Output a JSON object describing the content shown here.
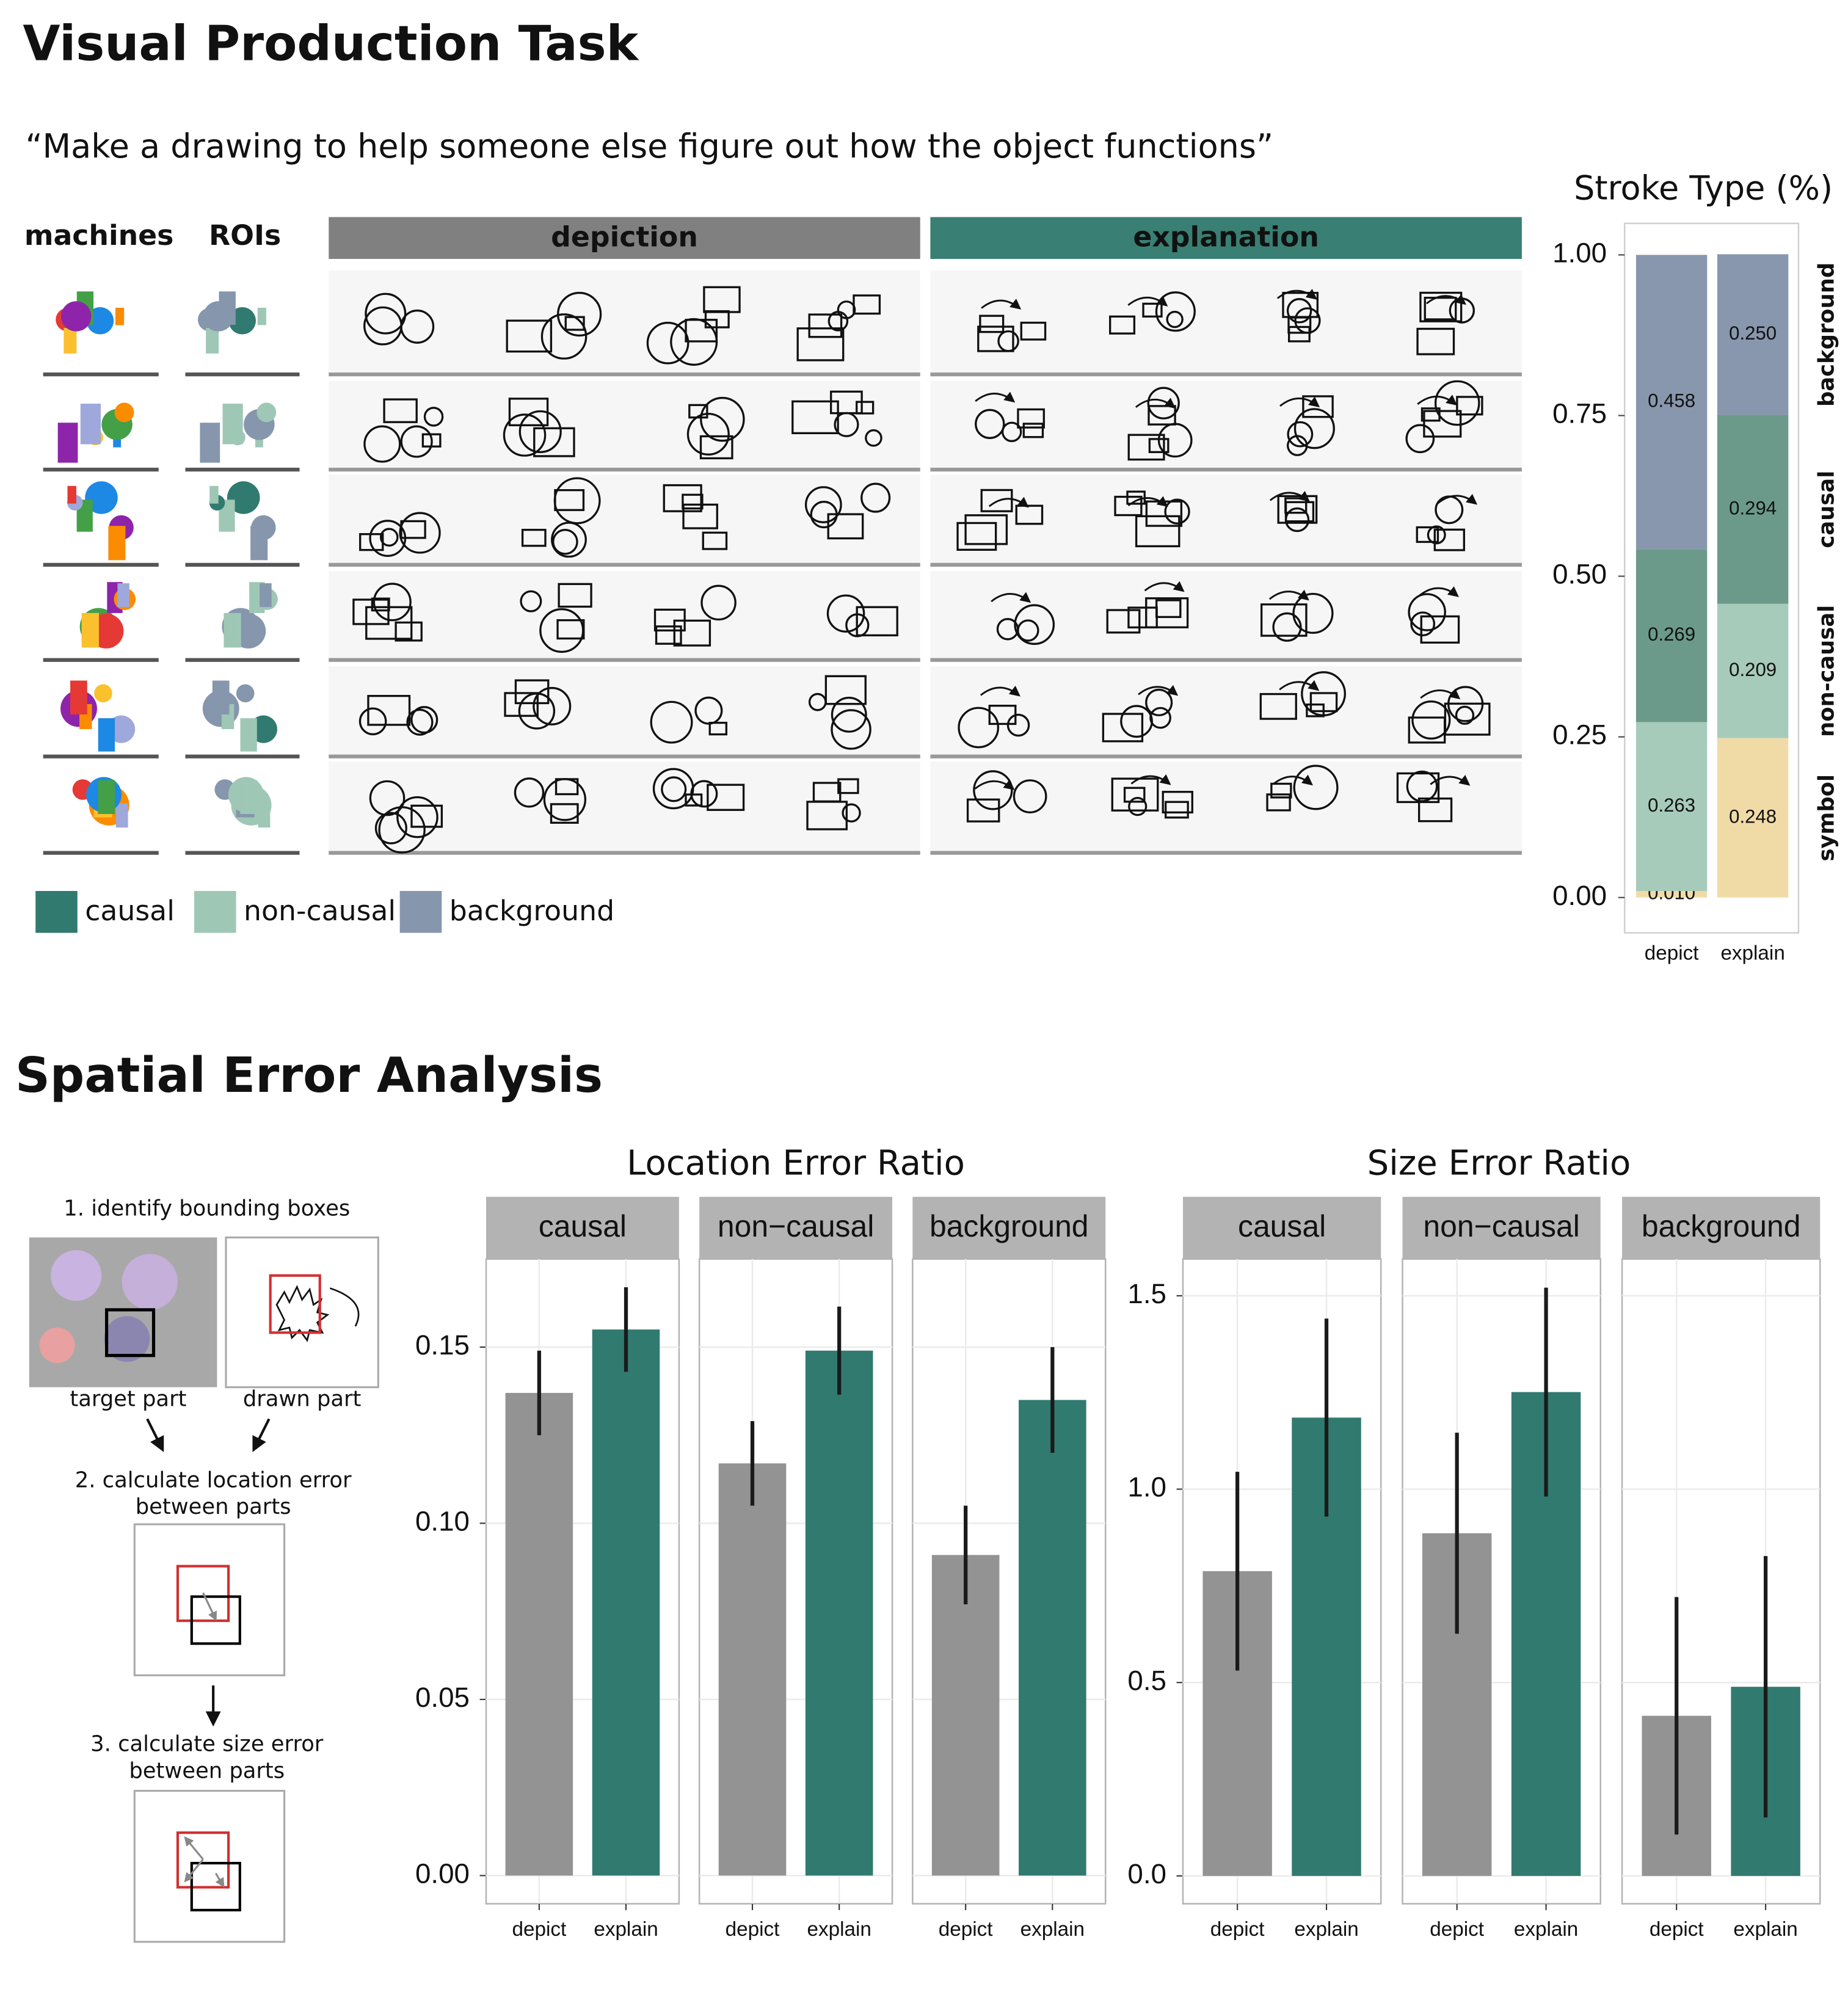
{
  "heading": "Visual Production Task",
  "prompt": "“Make a drawing to help someone else figure out how the object functions”",
  "column_headers": [
    "machines",
    "ROIs"
  ],
  "conditions": [
    "depiction",
    "explanation"
  ],
  "roi_legend": [
    {
      "name": "causal",
      "color": "#317a70"
    },
    {
      "name": "non-causal",
      "color": "#9fc7b5"
    },
    {
      "name": "background",
      "color": "#8596ad"
    }
  ],
  "heading2": "Spatial Error Analysis",
  "spatial_diagram": {
    "step1": "1. identify bounding boxes",
    "target_label": "target part",
    "drawn_label": "drawn part",
    "step2": [
      "2. calculate location error",
      "between parts"
    ],
    "step3": [
      "3. calculate size error",
      "between parts"
    ]
  },
  "chart_data": [
    {
      "type": "stacked_bar",
      "title": "Stroke Type (%)",
      "categories": [
        "depict",
        "explain"
      ],
      "series": [
        {
          "name": "symbol",
          "color": "#f0dba7",
          "values": [
            0.01,
            0.248
          ],
          "value_labels": [
            "0.010",
            "0.248"
          ]
        },
        {
          "name": "non-causal",
          "color": "#a7cbbb",
          "values": [
            0.263,
            0.209
          ],
          "value_labels": [
            "0.263",
            "0.209"
          ]
        },
        {
          "name": "causal",
          "color": "#6b9a8b",
          "values": [
            0.269,
            0.294
          ],
          "value_labels": [
            "0.269",
            "0.294"
          ]
        },
        {
          "name": "background",
          "color": "#8897ad",
          "values": [
            0.458,
            0.25
          ],
          "value_labels": [
            "0.458",
            "0.250"
          ]
        }
      ],
      "ylim": [
        -0.055,
        1.049
      ],
      "yticks": [
        {
          "value": 0,
          "label": "0.00"
        },
        {
          "value": 0.25,
          "label": "0.25"
        },
        {
          "value": 0.5,
          "label": "0.50"
        },
        {
          "value": 0.75,
          "label": "0.75"
        },
        {
          "value": 1,
          "label": "1.00"
        }
      ]
    },
    {
      "type": "facet_bar",
      "title": "Location Error Ratio",
      "categories": [
        "depict",
        "explain"
      ],
      "colors": [
        "#939393",
        "#317a70"
      ],
      "facets": [
        {
          "name": "causal",
          "values": [
            0.137,
            0.155
          ],
          "errors": [
            0.012,
            0.012
          ]
        },
        {
          "name": "non−causal",
          "values": [
            0.117,
            0.149
          ],
          "errors": [
            0.012,
            0.0125
          ]
        },
        {
          "name": "background",
          "values": [
            0.091,
            0.135
          ],
          "errors": [
            0.014,
            0.015
          ]
        }
      ],
      "ylim": [
        -0.008,
        0.175
      ],
      "yticks": [
        {
          "value": 0,
          "label": "0.00"
        },
        {
          "value": 0.05,
          "label": "0.05"
        },
        {
          "value": 0.1,
          "label": "0.10"
        },
        {
          "value": 0.15,
          "label": "0.15"
        }
      ],
      "grid": true
    },
    {
      "type": "facet_bar",
      "title": "Size Error Ratio",
      "categories": [
        "depict",
        "explain"
      ],
      "colors": [
        "#939393",
        "#317a70"
      ],
      "facets": [
        {
          "name": "causal",
          "values": [
            0.788,
            1.185
          ],
          "errors": [
            0.257,
            0.256
          ]
        },
        {
          "name": "non−causal",
          "values": [
            0.886,
            1.251
          ],
          "errors": [
            0.26,
            0.27
          ]
        },
        {
          "name": "background",
          "values": [
            0.414,
            0.489
          ],
          "errors": [
            0.307,
            0.338
          ]
        }
      ],
      "ylim": [
        -0.072,
        1.595
      ],
      "yticks": [
        {
          "value": 0,
          "label": "0.0"
        },
        {
          "value": 0.5,
          "label": "0.5"
        },
        {
          "value": 1,
          "label": "1.0"
        },
        {
          "value": 1.5,
          "label": "1.5"
        }
      ],
      "grid": true
    }
  ]
}
